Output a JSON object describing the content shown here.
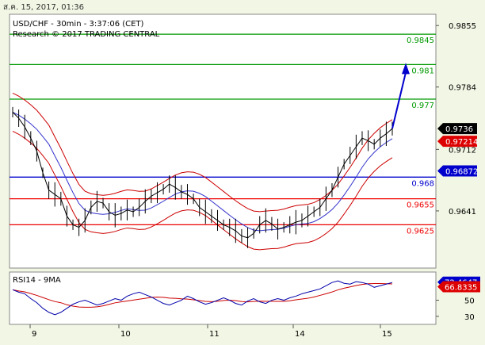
{
  "header": {
    "timestamp": "ส.ค. 15, 2017, 01:36"
  },
  "chart_data": {
    "type": "line",
    "title": "USD/CHF - 30min - 3:37:06 (CET)",
    "subtitle": "Research © 2017 TRADING CENTRAL",
    "x_tick_labels": [
      "9",
      "10",
      "11",
      "14",
      "15"
    ],
    "ylim": [
      0.9575,
      0.9868
    ],
    "y_ticks": [
      "0.9855",
      "0.9784",
      "0.9712",
      "0.9641"
    ],
    "levels": [
      {
        "label": "0.9845",
        "value": 0.9845,
        "color": "#009900"
      },
      {
        "label": "0.981",
        "value": 0.981,
        "color": "#009900"
      },
      {
        "label": "0.977",
        "value": 0.977,
        "color": "#009900"
      },
      {
        "label": "0.968",
        "value": 0.968,
        "color": "#0000cc"
      },
      {
        "label": "0.9655",
        "value": 0.9655,
        "color": "#ee0000"
      },
      {
        "label": "0.9625",
        "value": 0.9625,
        "color": "#ee0000"
      }
    ],
    "price_tags": [
      {
        "label": "0.9736",
        "value": 0.9736,
        "bg": "#000000"
      },
      {
        "label": "0.97214",
        "value": 0.97214,
        "bg": "#dd0000"
      },
      {
        "label": "0.96872",
        "value": 0.96872,
        "bg": "#0000cc"
      }
    ],
    "price_series": [
      0.9755,
      0.9748,
      0.9738,
      0.9725,
      0.971,
      0.9685,
      0.9665,
      0.966,
      0.9655,
      0.9635,
      0.9625,
      0.9622,
      0.963,
      0.9645,
      0.9652,
      0.965,
      0.964,
      0.9636,
      0.9638,
      0.9642,
      0.964,
      0.9645,
      0.9652,
      0.9658,
      0.9662,
      0.9666,
      0.9672,
      0.9668,
      0.9663,
      0.966,
      0.9655,
      0.9645,
      0.964,
      0.9635,
      0.963,
      0.9625,
      0.9622,
      0.9618,
      0.9612,
      0.961,
      0.9615,
      0.9625,
      0.963,
      0.9626,
      0.962,
      0.9622,
      0.9625,
      0.9628,
      0.963,
      0.9635,
      0.964,
      0.9645,
      0.9655,
      0.9665,
      0.968,
      0.9695,
      0.9705,
      0.9715,
      0.9725,
      0.9722,
      0.9718,
      0.9725,
      0.973,
      0.9736
    ],
    "forecast_arrow": {
      "from": 0.9736,
      "to": 0.981
    },
    "rsi": {
      "label": "RSI14 - 9MA",
      "tags": [
        {
          "label": "72.4647",
          "value": 72.4647,
          "bg": "#0000cc"
        },
        {
          "label": "66.8335",
          "value": 66.8335,
          "bg": "#dd0000"
        }
      ],
      "y_ticks": [
        "50",
        "30"
      ],
      "ylim": [
        20,
        85
      ],
      "values": [
        63,
        60,
        58,
        52,
        47,
        40,
        35,
        32,
        35,
        40,
        45,
        48,
        50,
        47,
        44,
        46,
        49,
        52,
        50,
        55,
        58,
        60,
        57,
        54,
        50,
        46,
        44,
        47,
        50,
        55,
        52,
        48,
        45,
        47,
        50,
        53,
        50,
        46,
        44,
        49,
        52,
        48,
        46,
        50,
        52,
        50,
        53,
        55,
        58,
        60,
        62,
        64,
        68,
        72,
        74,
        71,
        70,
        73,
        72,
        70,
        66,
        68,
        70,
        72
      ]
    }
  }
}
